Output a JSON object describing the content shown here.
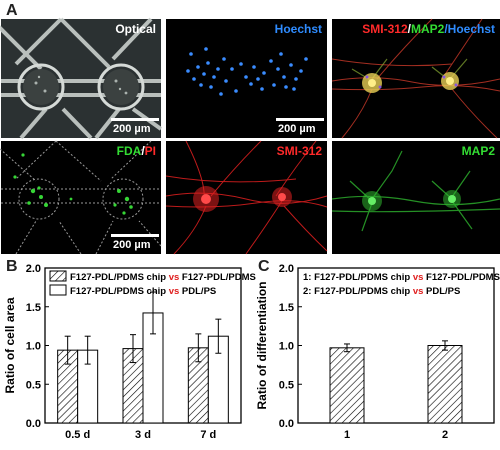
{
  "panel_a": {
    "letter": "A",
    "images": [
      {
        "label_parts": [
          {
            "text": "Optical",
            "color": "#ffffff"
          }
        ],
        "scale_text": "200 µm"
      },
      {
        "label_parts": [
          {
            "text": "Hoechst",
            "color": "#2f8cff"
          }
        ],
        "scale_text": "200 µm"
      },
      {
        "label_parts": [
          {
            "text": "SMI-312",
            "color": "#ff2a2a"
          },
          {
            "text": "/",
            "color": "#ffffff"
          },
          {
            "text": "MAP2",
            "color": "#33dd33"
          },
          {
            "text": "/Hoechst",
            "color": "#2f8cff"
          }
        ]
      },
      {
        "label_parts": [
          {
            "text": "FDA",
            "color": "#33dd33"
          },
          {
            "text": "/",
            "color": "#ffffff"
          },
          {
            "text": "PI",
            "color": "#ff2a2a"
          }
        ],
        "scale_text": "200 µm"
      },
      {
        "label_parts": [
          {
            "text": "SMI-312",
            "color": "#ff2a2a"
          }
        ]
      },
      {
        "label_parts": [
          {
            "text": "MAP2",
            "color": "#33dd33"
          }
        ]
      }
    ]
  },
  "panel_b": {
    "letter": "B"
  },
  "panel_c": {
    "letter": "C"
  },
  "chart_data": [
    {
      "type": "bar",
      "panel": "B",
      "ylabel": "Ratio of cell area",
      "categories": [
        "0.5 d",
        "3 d",
        "7 d"
      ],
      "ylim": [
        0,
        2.0
      ],
      "yticks": [
        "0.0",
        "0.5",
        "1.0",
        "1.5",
        "2.0"
      ],
      "legend_placement": "top-left",
      "legend": [
        {
          "pattern": "hatched",
          "parts": [
            {
              "text": "F127-PDL/PDMS chip ",
              "color": "#000000"
            },
            {
              "text": "vs",
              "color": "#e02020"
            },
            {
              "text": " F127-PDL/PDMS",
              "color": "#000000"
            }
          ]
        },
        {
          "pattern": "open",
          "parts": [
            {
              "text": "F127-PDL/PDMS chip ",
              "color": "#000000"
            },
            {
              "text": "vs",
              "color": "#e02020"
            },
            {
              "text": " PDL/PS",
              "color": "#000000"
            }
          ]
        }
      ],
      "series": [
        {
          "pattern": "hatched",
          "values": [
            0.94,
            0.96,
            0.97
          ],
          "errors": [
            0.18,
            0.18,
            0.18
          ]
        },
        {
          "pattern": "open",
          "values": [
            0.94,
            1.42,
            1.12
          ],
          "errors": [
            0.18,
            0.27,
            0.22
          ]
        }
      ]
    },
    {
      "type": "bar",
      "panel": "C",
      "ylabel": "Ratio of differentiation",
      "categories": [
        "1",
        "2"
      ],
      "ylim": [
        0,
        2.0
      ],
      "yticks": [
        "0.0",
        "0.5",
        "1.0",
        "1.5",
        "2.0"
      ],
      "legend_placement": "top-left",
      "legend": [
        {
          "parts": [
            {
              "text": "1: F127-PDL/PDMS chip ",
              "color": "#000000"
            },
            {
              "text": "vs",
              "color": "#e02020"
            },
            {
              "text": " F127-PDL/PDMS",
              "color": "#000000"
            }
          ]
        },
        {
          "parts": [
            {
              "text": "2: F127-PDL/PDMS chip ",
              "color": "#000000"
            },
            {
              "text": "vs",
              "color": "#e02020"
            },
            {
              "text": " PDL/PS",
              "color": "#000000"
            }
          ]
        }
      ],
      "series": [
        {
          "pattern": "hatched",
          "values": [
            0.97,
            1.0
          ],
          "errors": [
            0.05,
            0.06
          ]
        }
      ]
    }
  ]
}
